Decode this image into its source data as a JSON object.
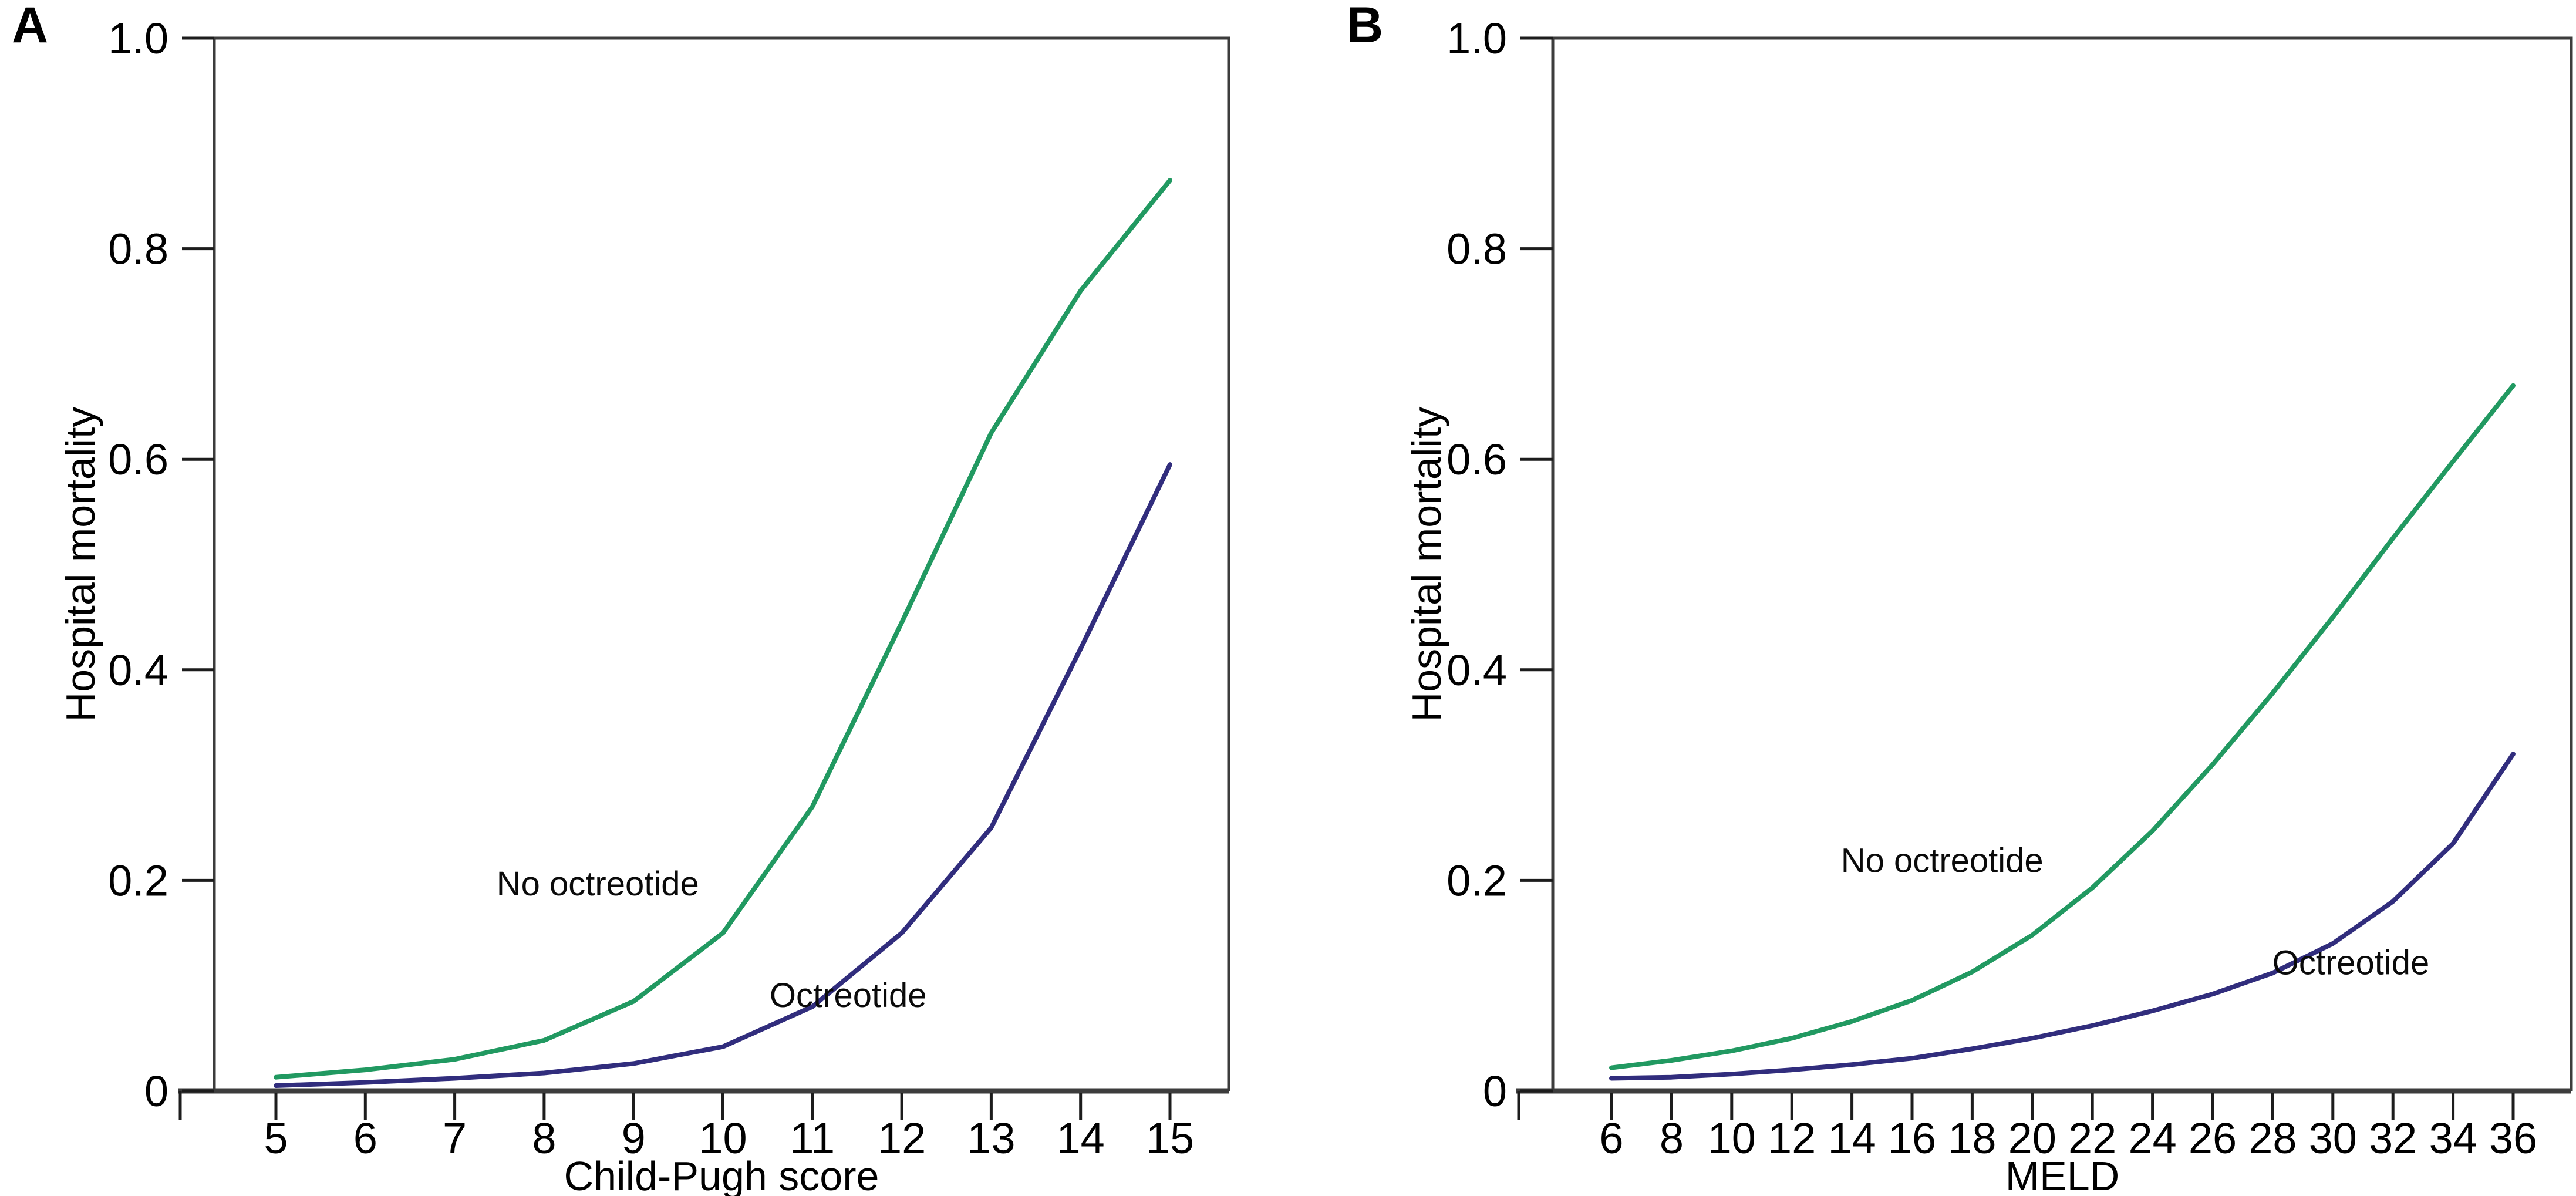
{
  "figure": {
    "background": "#ffffff",
    "axis_color": "#3c3c3c",
    "tick_color": "#1c1c1c",
    "text_color": "#000000"
  },
  "chart_data": [
    {
      "type": "line",
      "panel_label": "A",
      "xlabel": "Child-Pugh score",
      "ylabel": "Hospital mortality",
      "xlim": [
        5,
        15
      ],
      "ylim": [
        0,
        1
      ],
      "grid": false,
      "legend": "inline-annotations",
      "xticks": {
        "values": [
          5,
          6,
          7,
          8,
          9,
          10,
          11,
          12,
          13,
          14,
          15
        ],
        "labels": [
          "5",
          "6",
          "7",
          "8",
          "9",
          "10",
          "11",
          "12",
          "13",
          "14",
          "15"
        ]
      },
      "yticks": {
        "values": [
          0,
          0.2,
          0.4,
          0.6,
          0.8,
          1.0
        ],
        "labels": [
          "0",
          "0.2",
          "0.4",
          "0.6",
          "0.8",
          "1.0"
        ]
      },
      "x": [
        5,
        6,
        7,
        8,
        9,
        10,
        11,
        12,
        13,
        14,
        15
      ],
      "series": [
        {
          "name": "No octreotide",
          "color": "#219961",
          "values": [
            0.013,
            0.02,
            0.03,
            0.048,
            0.085,
            0.15,
            0.27,
            0.445,
            0.625,
            0.76,
            0.865
          ]
        },
        {
          "name": "Octreotide",
          "color": "#312d7d",
          "values": [
            0.005,
            0.008,
            0.012,
            0.017,
            0.026,
            0.042,
            0.08,
            0.15,
            0.25,
            0.42,
            0.595
          ]
        }
      ],
      "annotations": [
        {
          "text": "No octreotide",
          "x": 8.6,
          "y": 0.197
        },
        {
          "text": "Octreotide",
          "x": 11.4,
          "y": 0.091
        }
      ]
    },
    {
      "type": "line",
      "panel_label": "B",
      "xlabel": "MELD",
      "ylabel": "Hospital mortality",
      "xlim": [
        6,
        36
      ],
      "ylim": [
        0,
        1
      ],
      "grid": false,
      "legend": "inline-annotations",
      "xticks": {
        "values": [
          6,
          8,
          10,
          12,
          14,
          16,
          18,
          20,
          22,
          24,
          26,
          28,
          30,
          32,
          34,
          36
        ],
        "labels": [
          "6",
          "8",
          "10",
          "12",
          "14",
          "16",
          "18",
          "20",
          "22",
          "24",
          "26",
          "28",
          "30",
          "32",
          "34",
          "36"
        ]
      },
      "yticks": {
        "values": [
          0,
          0.2,
          0.4,
          0.6,
          0.8,
          1.0
        ],
        "labels": [
          "0",
          "0.2",
          "0.4",
          "0.6",
          "0.8",
          "1.0"
        ]
      },
      "x": [
        6,
        8,
        10,
        12,
        14,
        16,
        18,
        20,
        22,
        24,
        26,
        28,
        30,
        32,
        34,
        36
      ],
      "series": [
        {
          "name": "No octreotide",
          "color": "#219961",
          "values": [
            0.022,
            0.029,
            0.038,
            0.05,
            0.066,
            0.086,
            0.113,
            0.148,
            0.193,
            0.247,
            0.31,
            0.378,
            0.45,
            0.525,
            0.598,
            0.67
          ]
        },
        {
          "name": "Octreotide",
          "color": "#312d7d",
          "values": [
            0.012,
            0.013,
            0.016,
            0.02,
            0.025,
            0.031,
            0.04,
            0.05,
            0.062,
            0.076,
            0.092,
            0.112,
            0.14,
            0.18,
            0.235,
            0.32
          ]
        }
      ],
      "annotations": [
        {
          "text": "No octreotide",
          "x": 17.0,
          "y": 0.219
        },
        {
          "text": "Octreotide",
          "x": 30.6,
          "y": 0.122
        }
      ]
    }
  ]
}
